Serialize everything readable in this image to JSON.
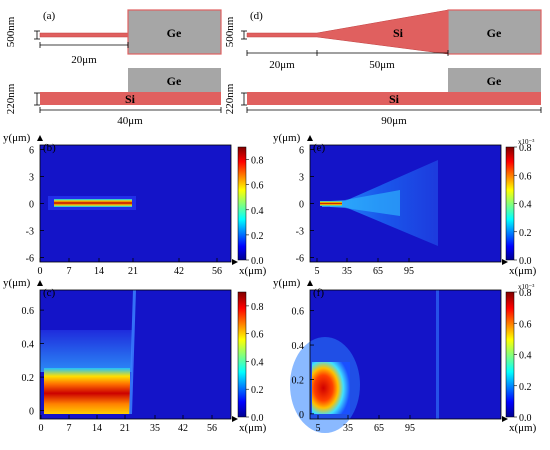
{
  "schematics": {
    "a": {
      "panel_label": "(a)",
      "width_label": "500nm",
      "height_label": "220nm",
      "taper_length_label": "20μm",
      "total_length_label": "40μm",
      "ge_label": "Ge",
      "si_label": "Si"
    },
    "d": {
      "panel_label": "(d)",
      "width_label": "500nm",
      "height_label": "220nm",
      "straight_length_label": "20μm",
      "taper_length_label": "50μm",
      "total_length_label": "90μm",
      "ge_label": "Ge",
      "si_label": "Si"
    }
  },
  "colors": {
    "silicon": "#e0605f",
    "germanium": "#a6a6a6",
    "field_background": "#1414c8"
  },
  "chart_data": [
    {
      "panel": "(b)",
      "type": "heatmap",
      "xlabel": "x(μm)",
      "ylabel": "y(μm)",
      "xticks": [
        0,
        7,
        14,
        21,
        42,
        56
      ],
      "yticks": [
        6,
        3,
        0,
        -3,
        -6
      ],
      "ylim": [
        -6.5,
        6.5
      ],
      "colorbar": {
        "ticks": [
          0.8,
          0.6,
          0.4,
          0.2,
          0.0
        ],
        "range": [
          0,
          0.9
        ],
        "exponent": ""
      }
    },
    {
      "panel": "(e)",
      "type": "heatmap",
      "xlabel": "x(μm)",
      "ylabel": "y(μm)",
      "xticks": [
        5,
        35,
        65,
        95
      ],
      "yticks": [
        6,
        3,
        0,
        -3,
        -6
      ],
      "ylim": [
        -6.5,
        6.5
      ],
      "colorbar": {
        "ticks": [
          0.8,
          0.6,
          0.4,
          0.2,
          0.0
        ],
        "range": [
          0,
          0.8
        ],
        "exponent": "x10⁻³"
      }
    },
    {
      "panel": "(c)",
      "type": "heatmap",
      "xlabel": "x(μm)",
      "ylabel": "y(μm)",
      "xticks": [
        0,
        7,
        14,
        21,
        35,
        42,
        56
      ],
      "yticks": [
        0.6,
        0.4,
        0.2,
        0.0
      ],
      "ylim": [
        -0.05,
        0.72
      ],
      "colorbar": {
        "ticks": [
          0.8,
          0.6,
          0.4,
          0.2,
          0.0
        ],
        "range": [
          0,
          0.9
        ],
        "exponent": ""
      }
    },
    {
      "panel": "(f)",
      "type": "heatmap",
      "xlabel": "x(μm)",
      "ylabel": "y(μm)",
      "xticks": [
        5,
        35,
        65,
        95
      ],
      "yticks": [
        0.6,
        0.4,
        0.2,
        0.0
      ],
      "ylim": [
        -0.03,
        0.72
      ],
      "colorbar": {
        "ticks": [
          0.8,
          0.6,
          0.4,
          0.2,
          0.0
        ],
        "range": [
          0,
          0.8
        ],
        "exponent": "x10⁻³"
      }
    }
  ]
}
